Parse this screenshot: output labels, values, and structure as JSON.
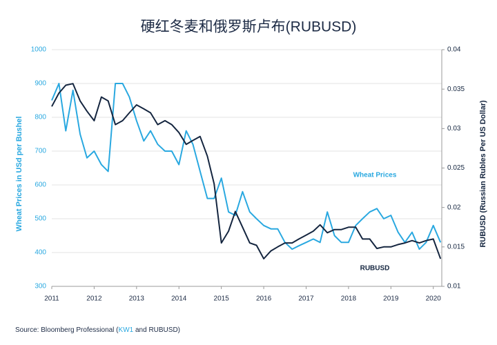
{
  "chart_data": {
    "type": "line",
    "title": "硬红冬麦和俄罗斯卢布(RUBUSD)",
    "y_label": "Wheat Prices in USd per Bushel",
    "y2_label": "RUBUSD (Russian Rubles Per US Dollar)",
    "x": [
      2011,
      2011.17,
      2011.33,
      2011.5,
      2011.67,
      2011.83,
      2012,
      2012.17,
      2012.33,
      2012.5,
      2012.67,
      2012.83,
      2013,
      2013.17,
      2013.33,
      2013.5,
      2013.67,
      2013.83,
      2014,
      2014.17,
      2014.33,
      2014.5,
      2014.67,
      2014.83,
      2015,
      2015.17,
      2015.33,
      2015.5,
      2015.67,
      2015.83,
      2016,
      2016.17,
      2016.33,
      2016.5,
      2016.67,
      2016.83,
      2017,
      2017.17,
      2017.33,
      2017.5,
      2017.67,
      2017.83,
      2018,
      2018.17,
      2018.33,
      2018.5,
      2018.67,
      2018.83,
      2019,
      2019.17,
      2019.33,
      2019.5,
      2019.67,
      2019.83,
      2020,
      2020.17
    ],
    "xlim": [
      2011,
      2020.2
    ],
    "xticks": [
      2011,
      2012,
      2013,
      2014,
      2015,
      2016,
      2017,
      2018,
      2019,
      2020
    ],
    "ylim": [
      300,
      1000
    ],
    "yticks": [
      300,
      400,
      500,
      600,
      700,
      800,
      900,
      1000
    ],
    "y2lim": [
      0.01,
      0.04
    ],
    "y2ticks": [
      0.01,
      0.015,
      0.02,
      0.025,
      0.03,
      0.035,
      0.04
    ],
    "grid": true,
    "series": [
      {
        "name": "Wheat Prices",
        "color": "#29a8e0",
        "values": [
          850,
          900,
          760,
          880,
          750,
          680,
          700,
          660,
          640,
          900,
          900,
          860,
          790,
          730,
          760,
          720,
          700,
          700,
          660,
          760,
          720,
          640,
          560,
          560,
          620,
          520,
          510,
          580,
          520,
          500,
          480,
          470,
          470,
          430,
          410,
          420,
          430,
          440,
          430,
          520,
          450,
          430,
          430,
          480,
          500,
          520,
          530,
          500,
          510,
          460,
          430,
          460,
          410,
          430,
          480,
          430
        ]
      },
      {
        "name": "RUBUSD",
        "color": "#14253f",
        "axis": "y2",
        "values": [
          0.0328,
          0.0345,
          0.0355,
          0.0357,
          0.0335,
          0.0322,
          0.031,
          0.034,
          0.0335,
          0.0305,
          0.031,
          0.032,
          0.033,
          0.0325,
          0.032,
          0.0305,
          0.031,
          0.0305,
          0.0295,
          0.028,
          0.0285,
          0.029,
          0.0265,
          0.023,
          0.0155,
          0.017,
          0.0195,
          0.0175,
          0.0155,
          0.0152,
          0.0135,
          0.0145,
          0.015,
          0.0155,
          0.0155,
          0.016,
          0.0165,
          0.017,
          0.0178,
          0.0168,
          0.0172,
          0.0172,
          0.0175,
          0.0175,
          0.016,
          0.016,
          0.0148,
          0.015,
          0.015,
          0.0153,
          0.0155,
          0.0158,
          0.0155,
          0.0158,
          0.016,
          0.0135
        ]
      }
    ],
    "source": {
      "prefix": "Source: Bloomberg Professional (",
      "link": "KW1",
      "suffix": " and RUBUSD)"
    }
  }
}
